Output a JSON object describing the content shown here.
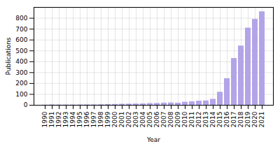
{
  "chart_data": {
    "type": "bar",
    "categories": [
      "1990",
      "1991",
      "1992",
      "1993",
      "1994",
      "1995",
      "1996",
      "1997",
      "1998",
      "1999",
      "2000",
      "2001",
      "2002",
      "2003",
      "2004",
      "2005",
      "2006",
      "2007",
      "2008",
      "2009",
      "2010",
      "2011",
      "2012",
      "2013",
      "2014",
      "2015",
      "2016",
      "2017",
      "2018",
      "2019",
      "2020",
      "2021"
    ],
    "values": [
      2,
      4,
      3,
      3,
      3,
      3,
      4,
      4,
      5,
      7,
      8,
      10,
      11,
      12,
      13,
      16,
      17,
      20,
      22,
      20,
      28,
      32,
      38,
      40,
      55,
      120,
      245,
      430,
      545,
      710,
      790,
      860
    ],
    "color": "#b3a4e8",
    "xlabel": "Year",
    "ylabel": "Publications",
    "ylim": [
      0,
      900
    ],
    "yticks": [
      0,
      100,
      200,
      300,
      400,
      500,
      600,
      700,
      800
    ],
    "grid": true
  }
}
